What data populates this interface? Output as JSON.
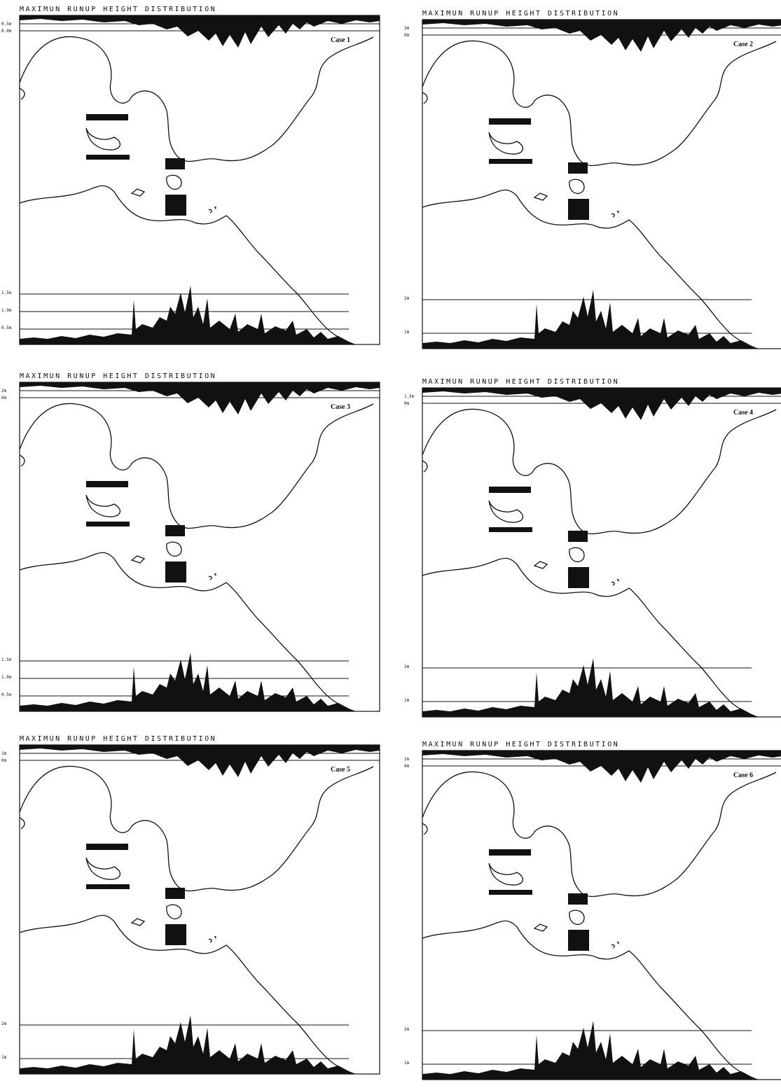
{
  "panels": [
    {
      "title": "MAXIMUN RUNUP HEIGHT DISTRIBUTION",
      "case": "Case 1",
      "top_labels": [
        "0.5m",
        "0.0m"
      ],
      "bottom_labels": [
        "1.5m",
        "1.0m",
        "0.5m"
      ]
    },
    {
      "title": "MAXIMUN RUNUP HEIGHT DISTRIBUTION",
      "case": "Case 2",
      "top_labels": [
        "3m",
        "0m"
      ],
      "bottom_labels": [
        "2m",
        "1m"
      ]
    },
    {
      "title": "MAXIMUN RUNUP HEIGHT DISTRIBUTION",
      "case": "Case 3",
      "top_labels": [
        "2m",
        "0m"
      ],
      "bottom_labels": [
        "1.5m",
        "1.0m",
        "0.5m"
      ]
    },
    {
      "title": "MAXIMUN RUNUP HEIGHT DISTRIBUTION",
      "case": "Case 4",
      "top_labels": [
        "1.5m",
        "0m"
      ],
      "bottom_labels": [
        "2m",
        "1m"
      ]
    },
    {
      "title": "MAXIMUN RUNUP HEIGHT DISTRIBUTION",
      "case": "Case 5",
      "top_labels": [
        "1m",
        "0m"
      ],
      "bottom_labels": [
        "2m",
        "1m"
      ]
    },
    {
      "title": "MAXIMUN RUNUP HEIGHT DISTRIBUTION",
      "case": "Case 6",
      "top_labels": [
        "1m",
        "0m"
      ],
      "bottom_labels": [
        "2m",
        "1m"
      ]
    }
  ]
}
